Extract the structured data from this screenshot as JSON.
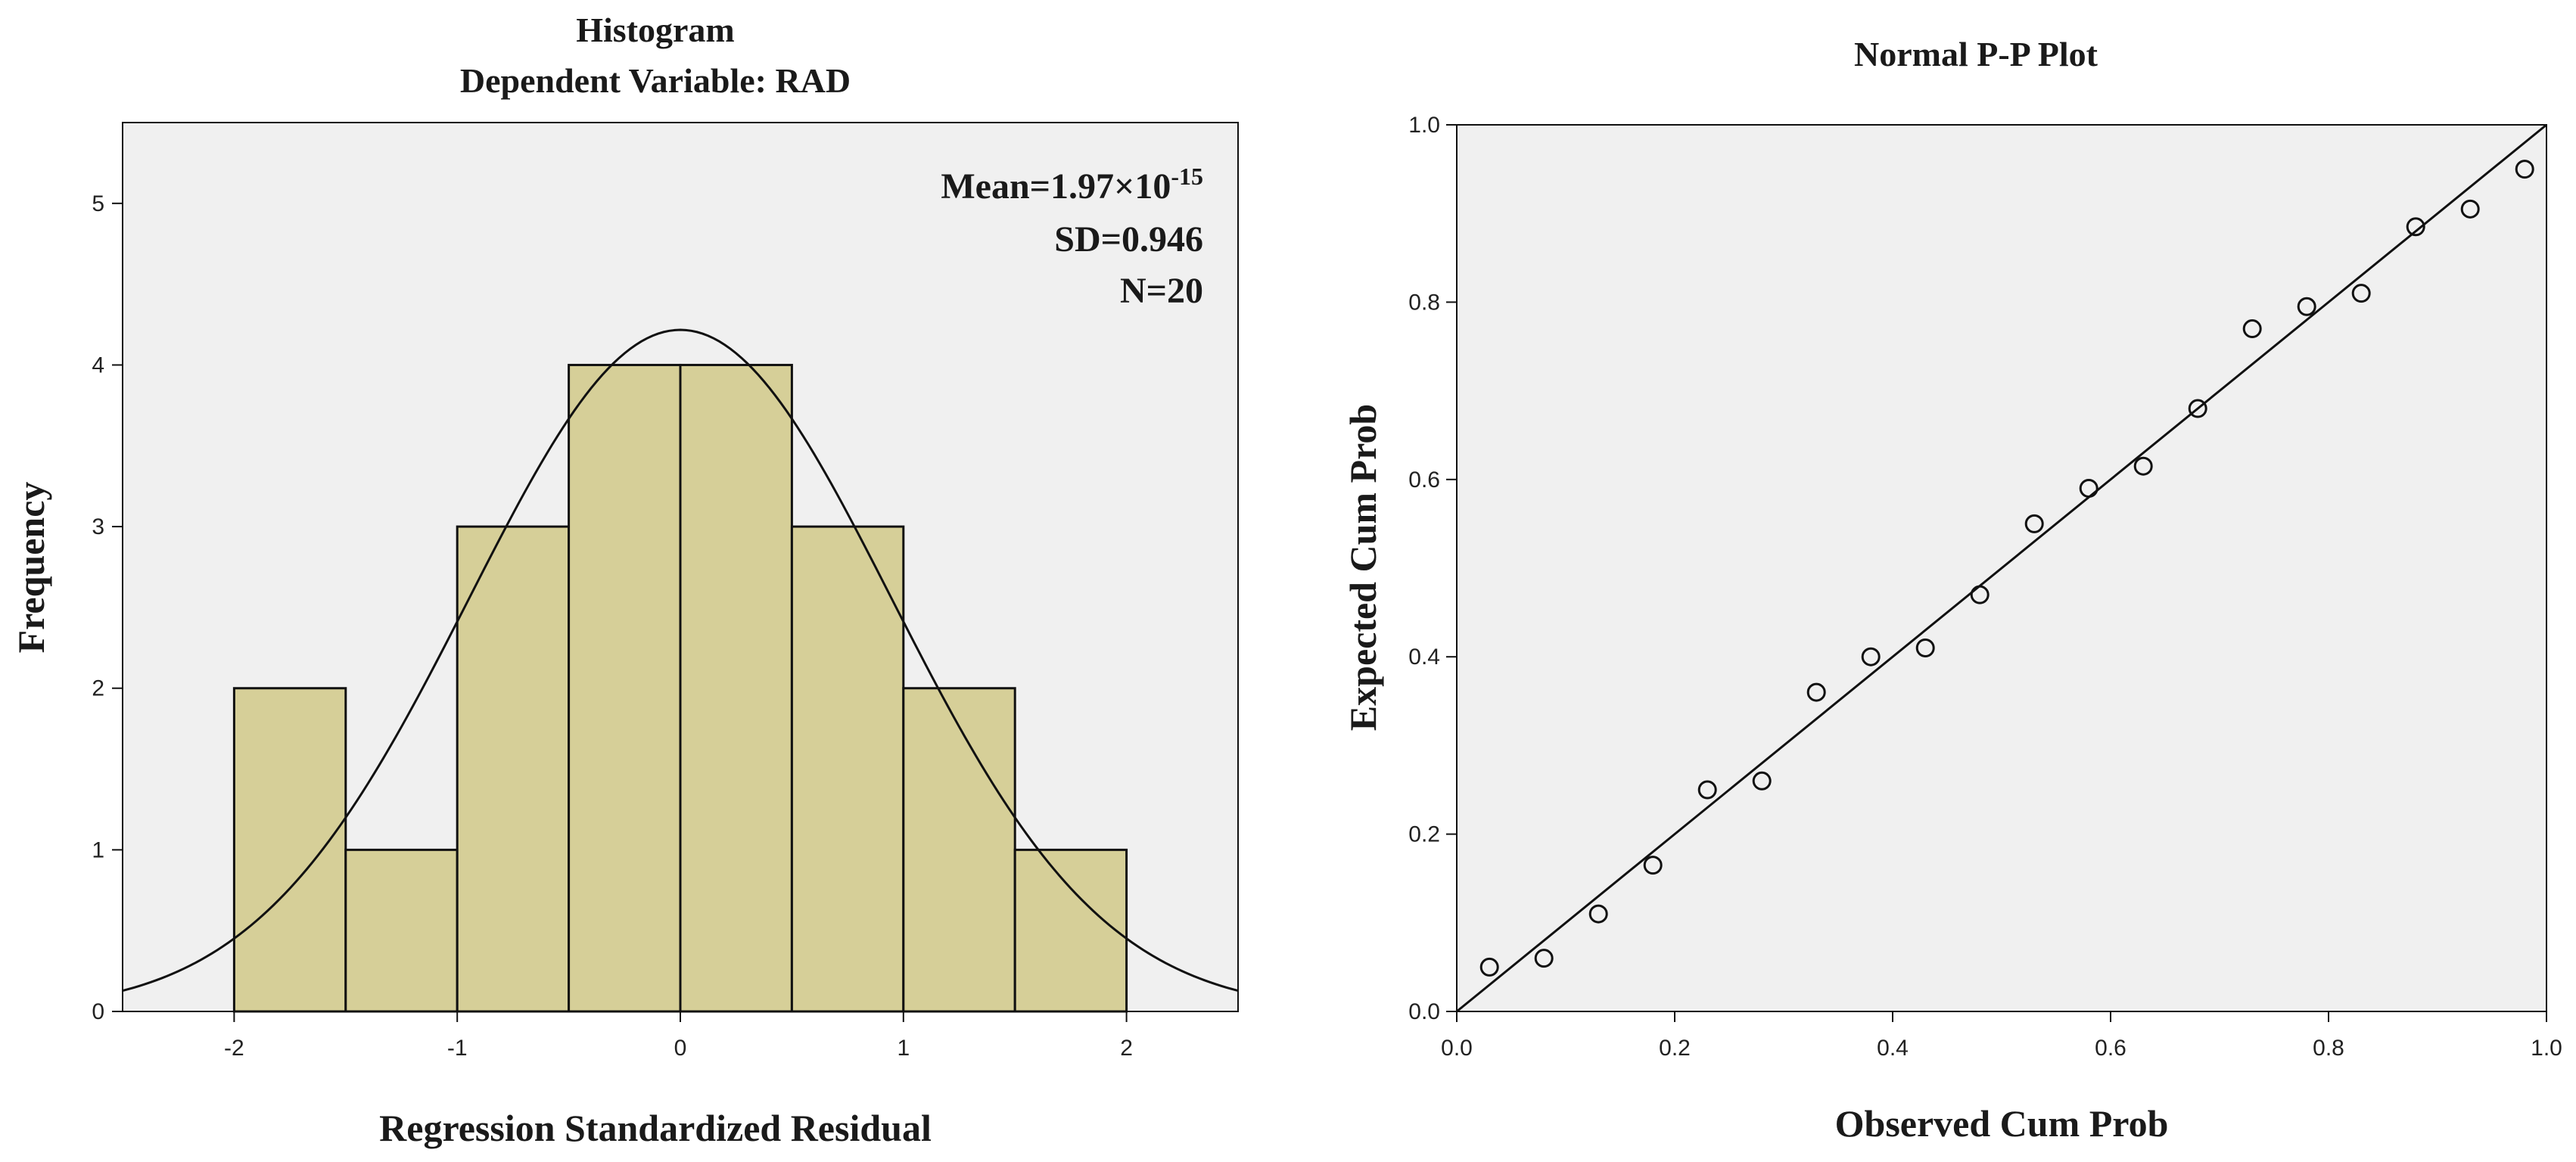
{
  "colors": {
    "plot_bg": "#f0f0f0",
    "bar_fill": "#d6cf98",
    "line": "#111111"
  },
  "chart_data": [
    {
      "type": "bar",
      "title": "Histogram",
      "subtitle": "Dependent Variable: RAD",
      "xlabel": "Regression Standardized Residual",
      "ylabel": "Frequency",
      "bins": [
        {
          "start": -2.0,
          "end": -1.5,
          "count": 2
        },
        {
          "start": -1.5,
          "end": -1.0,
          "count": 1
        },
        {
          "start": -1.0,
          "end": -0.5,
          "count": 3
        },
        {
          "start": -0.5,
          "end": 0.0,
          "count": 4
        },
        {
          "start": 0.0,
          "end": 0.5,
          "count": 4
        },
        {
          "start": 0.5,
          "end": 1.0,
          "count": 3
        },
        {
          "start": 1.0,
          "end": 1.5,
          "count": 2
        },
        {
          "start": 1.5,
          "end": 2.0,
          "count": 1
        }
      ],
      "xlim": [
        -2.5,
        2.5
      ],
      "ylim": [
        0,
        5.5
      ],
      "xticks": [
        -2,
        -1,
        0,
        1,
        2
      ],
      "yticks": [
        0,
        1,
        2,
        3,
        4,
        5
      ],
      "normal_curve": {
        "mean": 0,
        "sd": 0.946,
        "n": 20,
        "bin_width": 0.5
      },
      "annotation": {
        "mean_label": "Mean=1.97×10",
        "mean_exponent": "-15",
        "sd_label": "SD=0.946",
        "n_label": "N=20"
      }
    },
    {
      "type": "scatter",
      "title": "Normal P-P Plot",
      "xlabel": "Observed Cum Prob",
      "ylabel": "Expected Cum Prob",
      "xlim": [
        0,
        1
      ],
      "ylim": [
        0,
        1
      ],
      "xticks": [
        "0.0",
        "0.2",
        "0.4",
        "0.6",
        "0.8",
        "1.0"
      ],
      "yticks": [
        "0.0",
        "0.2",
        "0.4",
        "0.6",
        "0.8",
        "1.0"
      ],
      "reference_line": {
        "from": [
          0,
          0
        ],
        "to": [
          1,
          1
        ]
      },
      "points": [
        {
          "x": 0.03,
          "y": 0.05
        },
        {
          "x": 0.08,
          "y": 0.06
        },
        {
          "x": 0.13,
          "y": 0.11
        },
        {
          "x": 0.18,
          "y": 0.165
        },
        {
          "x": 0.23,
          "y": 0.25
        },
        {
          "x": 0.28,
          "y": 0.26
        },
        {
          "x": 0.33,
          "y": 0.36
        },
        {
          "x": 0.38,
          "y": 0.4
        },
        {
          "x": 0.43,
          "y": 0.41
        },
        {
          "x": 0.48,
          "y": 0.47
        },
        {
          "x": 0.53,
          "y": 0.55
        },
        {
          "x": 0.58,
          "y": 0.59
        },
        {
          "x": 0.63,
          "y": 0.615
        },
        {
          "x": 0.68,
          "y": 0.68
        },
        {
          "x": 0.73,
          "y": 0.77
        },
        {
          "x": 0.78,
          "y": 0.795
        },
        {
          "x": 0.83,
          "y": 0.81
        },
        {
          "x": 0.88,
          "y": 0.885
        },
        {
          "x": 0.93,
          "y": 0.905
        },
        {
          "x": 0.98,
          "y": 0.95
        }
      ]
    }
  ]
}
